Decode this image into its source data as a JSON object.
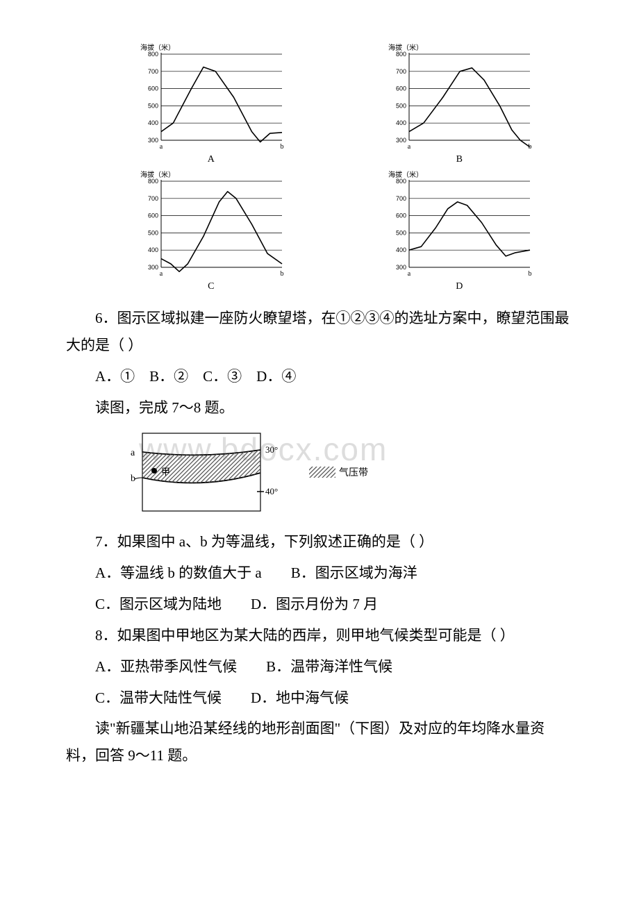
{
  "watermark": "www.bdocx.com",
  "charts": {
    "axis_title": "海拔（米）",
    "y_ticks": [
      300,
      400,
      500,
      600,
      700,
      800
    ],
    "x_labels": {
      "left": "a",
      "right": "b"
    },
    "label_fontsize": 10,
    "grid_color": "#000000",
    "line_color": "#000000",
    "background": "#ffffff",
    "series": {
      "A": {
        "label": "A",
        "points": [
          [
            0,
            350
          ],
          [
            10,
            400
          ],
          [
            25,
            600
          ],
          [
            35,
            725
          ],
          [
            45,
            700
          ],
          [
            60,
            550
          ],
          [
            75,
            350
          ],
          [
            82,
            290
          ],
          [
            90,
            340
          ],
          [
            100,
            345
          ]
        ]
      },
      "B": {
        "label": "B",
        "points": [
          [
            0,
            350
          ],
          [
            12,
            400
          ],
          [
            28,
            550
          ],
          [
            42,
            700
          ],
          [
            52,
            720
          ],
          [
            62,
            650
          ],
          [
            75,
            500
          ],
          [
            85,
            360
          ],
          [
            92,
            300
          ],
          [
            100,
            260
          ]
        ]
      },
      "C": {
        "label": "C",
        "points": [
          [
            0,
            350
          ],
          [
            8,
            320
          ],
          [
            15,
            275
          ],
          [
            22,
            320
          ],
          [
            35,
            480
          ],
          [
            48,
            680
          ],
          [
            55,
            740
          ],
          [
            62,
            700
          ],
          [
            75,
            550
          ],
          [
            88,
            380
          ],
          [
            100,
            320
          ]
        ]
      },
      "D": {
        "label": "D",
        "points": [
          [
            0,
            400
          ],
          [
            10,
            420
          ],
          [
            22,
            530
          ],
          [
            32,
            640
          ],
          [
            40,
            680
          ],
          [
            48,
            660
          ],
          [
            60,
            560
          ],
          [
            72,
            430
          ],
          [
            80,
            365
          ],
          [
            88,
            385
          ],
          [
            100,
            400
          ]
        ]
      }
    }
  },
  "q6": {
    "text": "6．图示区域拟建一座防火瞭望塔，在①②③④的选址方案中，瞭望范围最大的是（ ）",
    "options": "A．①　B．②　C．③　D．④"
  },
  "intro78": "读图，完成 7～8 题。",
  "diagram78": {
    "label_a": "a",
    "label_b": "b",
    "label_30": "30°",
    "label_40": "40°",
    "label_jia": "甲",
    "legend_text": "气压带",
    "hatch_color": "#555555",
    "line_color": "#000000"
  },
  "q7": {
    "text": "7．如果图中 a、b 为等温线，下列叙述正确的是（ ）",
    "line1": "A．等温线 b 的数值大于 a　　B．图示区域为海洋",
    "line2": "C．图示区域为陆地　　D．图示月份为 7 月"
  },
  "q8": {
    "text": "8．如果图中甲地区为某大陆的西岸，则甲地气候类型可能是（ ）",
    "line1": "A．亚热带季风性气候　　B．温带海洋性气候",
    "line2": "C．温带大陆性气候　　D．地中海气候"
  },
  "intro911": "读\"新疆某山地沿某经线的地形剖面图\"（下图）及对应的年均降水量资料，回答 9～11 题。"
}
